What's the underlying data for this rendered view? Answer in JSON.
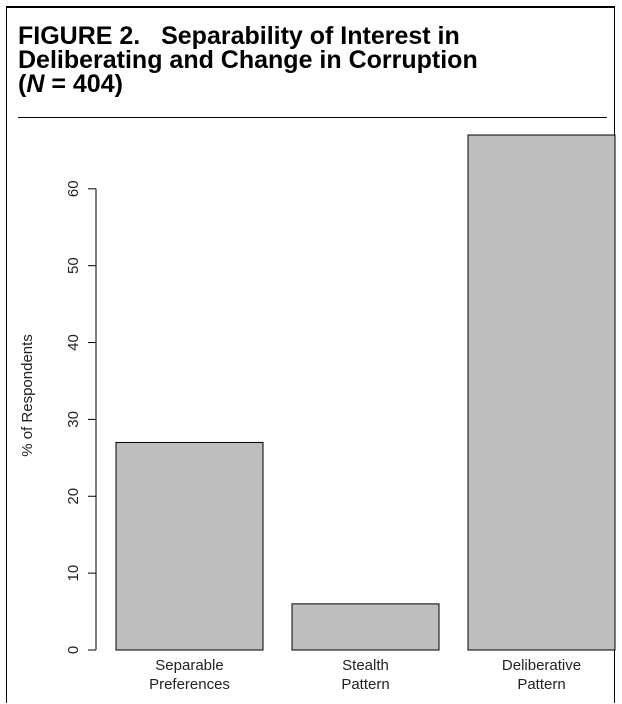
{
  "figure": {
    "label": "FIGURE 2.",
    "title_line1": "Separability of Interest in",
    "title_line2": "Deliberating and Change in Corruption",
    "sample_open": "(",
    "sample_var": "N",
    "sample_rest": " = 404)"
  },
  "chart_data": {
    "type": "bar",
    "categories": [
      [
        "Separable",
        "Preferences"
      ],
      [
        "Stealth",
        "Pattern"
      ],
      [
        "Deliberative",
        "Pattern"
      ]
    ],
    "values": [
      27,
      6,
      67
    ],
    "ylabel": "% of Respondents",
    "xlabel": "",
    "ylim": [
      0,
      67
    ],
    "yticks": [
      0,
      10,
      20,
      30,
      40,
      50,
      60
    ],
    "bar_color": "#bebebe",
    "grid": false
  }
}
